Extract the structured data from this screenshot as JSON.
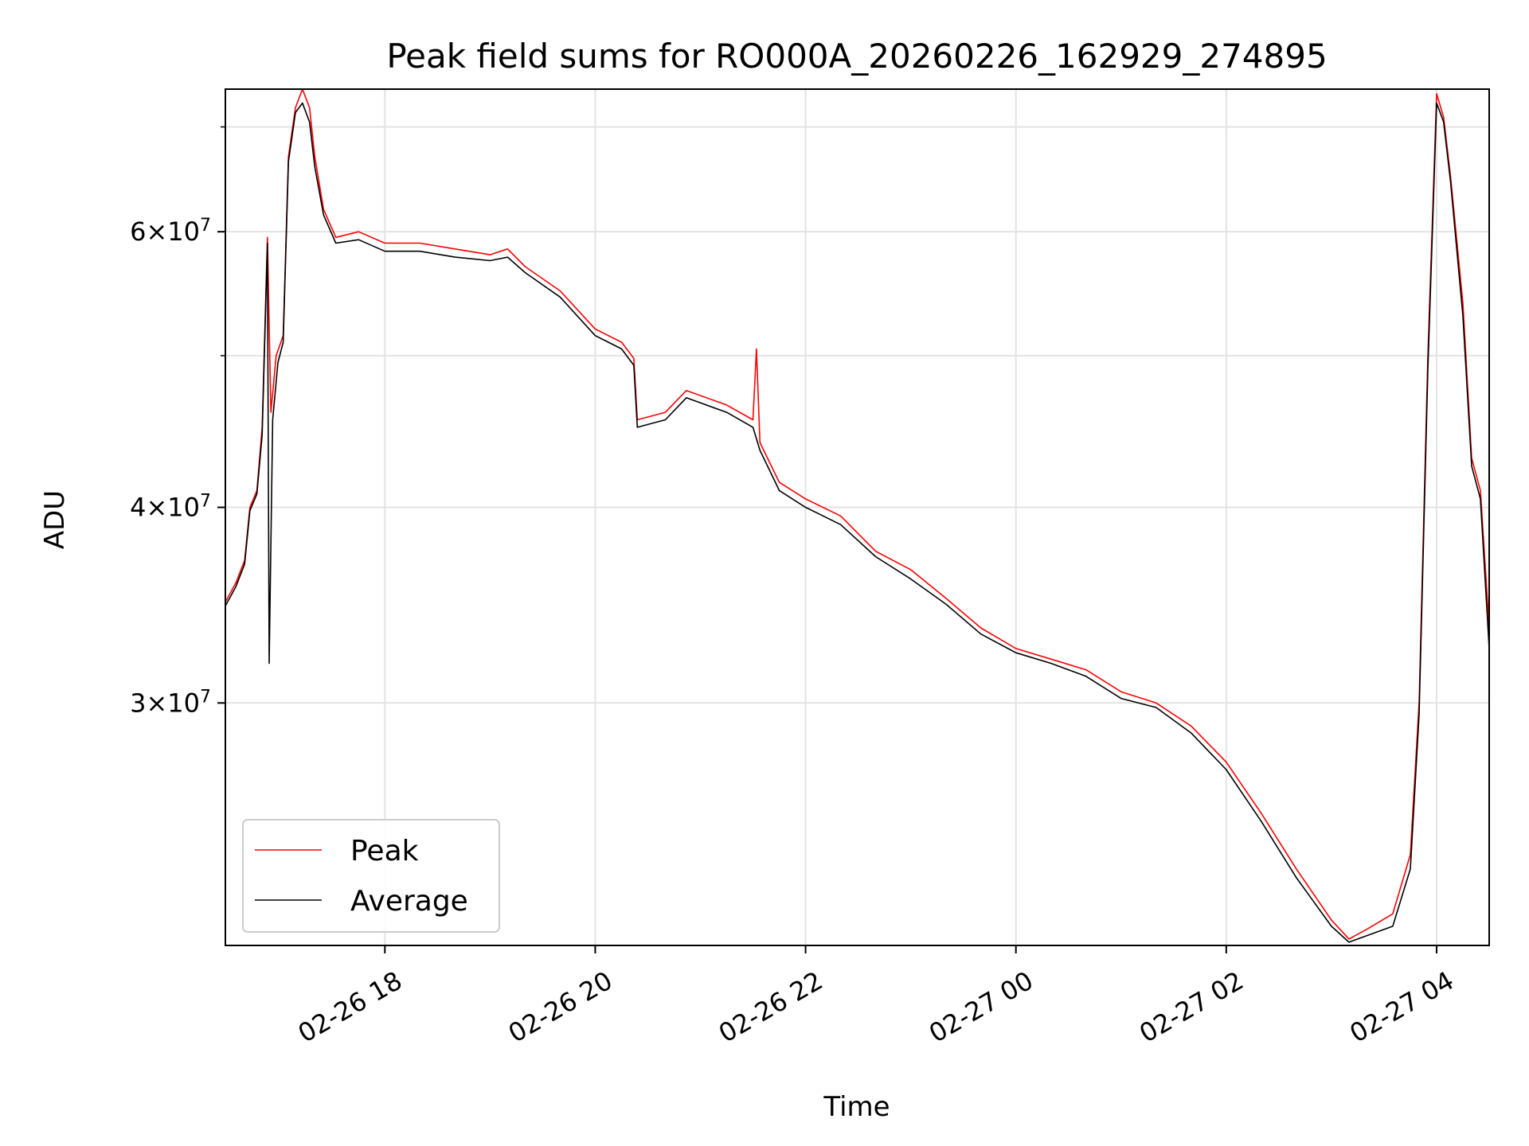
{
  "chart_data": {
    "type": "line",
    "title": "Peak field sums for RO000A_20260226_162929_274895",
    "xlabel": "Time",
    "ylabel": "ADU",
    "y_scale": "log",
    "grid": true,
    "legend_position": "lower-left",
    "xlim": [
      "2026-02-26 16:29",
      "2026-02-27 04:30"
    ],
    "ylim": [
      21000000,
      74000000
    ],
    "x_ticks": [
      {
        "value": "2026-02-26 18:00",
        "label": "02-26 18"
      },
      {
        "value": "2026-02-26 20:00",
        "label": "02-26 20"
      },
      {
        "value": "2026-02-26 22:00",
        "label": "02-26 22"
      },
      {
        "value": "2026-02-27 00:00",
        "label": "02-27 00"
      },
      {
        "value": "2026-02-27 02:00",
        "label": "02-27 02"
      },
      {
        "value": "2026-02-27 04:00",
        "label": "02-27 04"
      }
    ],
    "y_ticks": [
      {
        "value": 30000000,
        "base": "3",
        "exp": "7"
      },
      {
        "value": 40000000,
        "base": "4",
        "exp": "7"
      },
      {
        "value": 60000000,
        "base": "6",
        "exp": "7"
      }
    ],
    "y_minor_ticks": [
      50000000,
      70000000
    ],
    "series": [
      {
        "name": "Peak",
        "color": "#ff0000",
        "points": [
          [
            "2026-02-26 16:29",
            34800000
          ],
          [
            "2026-02-26 16:35",
            35800000
          ],
          [
            "2026-02-26 16:40",
            37000000
          ],
          [
            "2026-02-26 16:43",
            40000000
          ],
          [
            "2026-02-26 16:47",
            41000000
          ],
          [
            "2026-02-26 16:50",
            45000000
          ],
          [
            "2026-02-26 16:53",
            59500000
          ],
          [
            "2026-02-26 16:55",
            46000000
          ],
          [
            "2026-02-26 16:58",
            50000000
          ],
          [
            "2026-02-26 17:02",
            51500000
          ],
          [
            "2026-02-26 17:05",
            67000000
          ],
          [
            "2026-02-26 17:09",
            72000000
          ],
          [
            "2026-02-26 17:13",
            74000000
          ],
          [
            "2026-02-26 17:17",
            72000000
          ],
          [
            "2026-02-26 17:20",
            67000000
          ],
          [
            "2026-02-26 17:25",
            62000000
          ],
          [
            "2026-02-26 17:32",
            59500000
          ],
          [
            "2026-02-26 17:45",
            60000000
          ],
          [
            "2026-02-26 18:00",
            59000000
          ],
          [
            "2026-02-26 18:20",
            59000000
          ],
          [
            "2026-02-26 18:40",
            58500000
          ],
          [
            "2026-02-26 19:00",
            58000000
          ],
          [
            "2026-02-26 19:10",
            58500000
          ],
          [
            "2026-02-26 19:20",
            57000000
          ],
          [
            "2026-02-26 19:40",
            55000000
          ],
          [
            "2026-02-26 20:00",
            52000000
          ],
          [
            "2026-02-26 20:15",
            51000000
          ],
          [
            "2026-02-26 20:22",
            49800000
          ],
          [
            "2026-02-26 20:24",
            45500000
          ],
          [
            "2026-02-26 20:40",
            46000000
          ],
          [
            "2026-02-26 20:52",
            47500000
          ],
          [
            "2026-02-26 21:15",
            46500000
          ],
          [
            "2026-02-26 21:30",
            45500000
          ],
          [
            "2026-02-26 21:32",
            50500000
          ],
          [
            "2026-02-26 21:34",
            44000000
          ],
          [
            "2026-02-26 21:45",
            41500000
          ],
          [
            "2026-02-26 22:00",
            40500000
          ],
          [
            "2026-02-26 22:20",
            39500000
          ],
          [
            "2026-02-26 22:40",
            37500000
          ],
          [
            "2026-02-26 23:00",
            36500000
          ],
          [
            "2026-02-26 23:20",
            35000000
          ],
          [
            "2026-02-26 23:40",
            33500000
          ],
          [
            "2026-02-27 00:00",
            32500000
          ],
          [
            "2026-02-27 00:20",
            32000000
          ],
          [
            "2026-02-27 00:40",
            31500000
          ],
          [
            "2026-02-27 01:00",
            30500000
          ],
          [
            "2026-02-27 01:20",
            30000000
          ],
          [
            "2026-02-27 01:40",
            29000000
          ],
          [
            "2026-02-27 02:00",
            27500000
          ],
          [
            "2026-02-27 02:20",
            25500000
          ],
          [
            "2026-02-27 02:40",
            23500000
          ],
          [
            "2026-02-27 03:00",
            21800000
          ],
          [
            "2026-02-27 03:10",
            21200000
          ],
          [
            "2026-02-27 03:20",
            21500000
          ],
          [
            "2026-02-27 03:35",
            22000000
          ],
          [
            "2026-02-27 03:45",
            24000000
          ],
          [
            "2026-02-27 03:50",
            30000000
          ],
          [
            "2026-02-27 03:55",
            50000000
          ],
          [
            "2026-02-27 04:00",
            73500000
          ],
          [
            "2026-02-27 04:04",
            71000000
          ],
          [
            "2026-02-27 04:08",
            65000000
          ],
          [
            "2026-02-27 04:15",
            54000000
          ],
          [
            "2026-02-27 04:20",
            43000000
          ],
          [
            "2026-02-27 04:25",
            41000000
          ],
          [
            "2026-02-27 04:30",
            33500000
          ]
        ]
      },
      {
        "name": "Average",
        "color": "#000000",
        "points": [
          [
            "2026-02-26 16:29",
            34600000
          ],
          [
            "2026-02-26 16:35",
            35600000
          ],
          [
            "2026-02-26 16:40",
            36800000
          ],
          [
            "2026-02-26 16:43",
            39800000
          ],
          [
            "2026-02-26 16:47",
            40800000
          ],
          [
            "2026-02-26 16:50",
            44500000
          ],
          [
            "2026-02-26 16:53",
            59000000
          ],
          [
            "2026-02-26 16:54",
            31800000
          ],
          [
            "2026-02-26 16:56",
            45500000
          ],
          [
            "2026-02-26 16:59",
            49500000
          ],
          [
            "2026-02-26 17:02",
            51000000
          ],
          [
            "2026-02-26 17:05",
            66500000
          ],
          [
            "2026-02-26 17:09",
            71500000
          ],
          [
            "2026-02-26 17:13",
            72500000
          ],
          [
            "2026-02-26 17:17",
            70500000
          ],
          [
            "2026-02-26 17:20",
            66000000
          ],
          [
            "2026-02-26 17:25",
            61500000
          ],
          [
            "2026-02-26 17:32",
            59000000
          ],
          [
            "2026-02-26 17:45",
            59300000
          ],
          [
            "2026-02-26 18:00",
            58300000
          ],
          [
            "2026-02-26 18:20",
            58300000
          ],
          [
            "2026-02-26 18:40",
            57800000
          ],
          [
            "2026-02-26 19:00",
            57500000
          ],
          [
            "2026-02-26 19:10",
            57800000
          ],
          [
            "2026-02-26 19:20",
            56500000
          ],
          [
            "2026-02-26 19:40",
            54500000
          ],
          [
            "2026-02-26 20:00",
            51500000
          ],
          [
            "2026-02-26 20:15",
            50500000
          ],
          [
            "2026-02-26 20:22",
            49300000
          ],
          [
            "2026-02-26 20:24",
            45000000
          ],
          [
            "2026-02-26 20:40",
            45500000
          ],
          [
            "2026-02-26 20:52",
            47000000
          ],
          [
            "2026-02-26 21:15",
            46000000
          ],
          [
            "2026-02-26 21:30",
            45000000
          ],
          [
            "2026-02-26 21:34",
            43500000
          ],
          [
            "2026-02-26 21:45",
            41000000
          ],
          [
            "2026-02-26 22:00",
            40000000
          ],
          [
            "2026-02-26 22:20",
            39000000
          ],
          [
            "2026-02-26 22:40",
            37200000
          ],
          [
            "2026-02-26 23:00",
            36000000
          ],
          [
            "2026-02-26 23:20",
            34700000
          ],
          [
            "2026-02-26 23:40",
            33200000
          ],
          [
            "2026-02-27 00:00",
            32300000
          ],
          [
            "2026-02-27 00:20",
            31800000
          ],
          [
            "2026-02-27 00:40",
            31200000
          ],
          [
            "2026-02-27 01:00",
            30200000
          ],
          [
            "2026-02-27 01:20",
            29800000
          ],
          [
            "2026-02-27 01:40",
            28700000
          ],
          [
            "2026-02-27 02:00",
            27200000
          ],
          [
            "2026-02-27 02:20",
            25200000
          ],
          [
            "2026-02-27 02:40",
            23200000
          ],
          [
            "2026-02-27 03:00",
            21600000
          ],
          [
            "2026-02-27 03:10",
            21100000
          ],
          [
            "2026-02-27 03:20",
            21300000
          ],
          [
            "2026-02-27 03:35",
            21600000
          ],
          [
            "2026-02-27 03:45",
            23500000
          ],
          [
            "2026-02-27 03:50",
            29500000
          ],
          [
            "2026-02-27 03:55",
            49000000
          ],
          [
            "2026-02-27 04:00",
            72500000
          ],
          [
            "2026-02-27 04:04",
            70500000
          ],
          [
            "2026-02-27 04:08",
            64500000
          ],
          [
            "2026-02-27 04:15",
            53000000
          ],
          [
            "2026-02-27 04:20",
            42500000
          ],
          [
            "2026-02-27 04:25",
            40500000
          ],
          [
            "2026-02-27 04:30",
            32500000
          ]
        ]
      }
    ]
  }
}
